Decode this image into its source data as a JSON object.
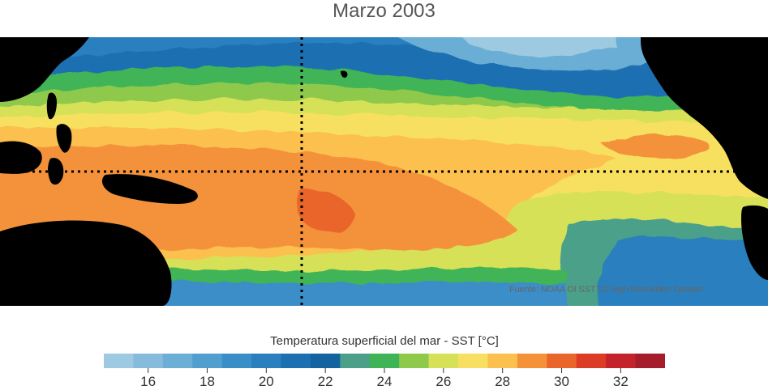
{
  "title": "Marzo 2003",
  "source_text": "Fuente: NOAA OI SST V2 High Resolution Dataset",
  "colorbar": {
    "label": "Temperatura superficial del mar - SST  [°C]",
    "min": 15,
    "max": 33,
    "bins": [
      {
        "from": 15,
        "to": 16,
        "color": "#9ecae1"
      },
      {
        "from": 16,
        "to": 17,
        "color": "#86bbdc"
      },
      {
        "from": 17,
        "to": 18,
        "color": "#6baed6"
      },
      {
        "from": 18,
        "to": 19,
        "color": "#519fcf"
      },
      {
        "from": 19,
        "to": 20,
        "color": "#3a8ec8"
      },
      {
        "from": 20,
        "to": 21,
        "color": "#2a7fbe"
      },
      {
        "from": 21,
        "to": 22,
        "color": "#1c70b2"
      },
      {
        "from": 22,
        "to": 23,
        "color": "#12639f"
      },
      {
        "from": 23,
        "to": 24,
        "color": "#4ca08a"
      },
      {
        "from": 24,
        "to": 25,
        "color": "#3fb456"
      },
      {
        "from": 25,
        "to": 26,
        "color": "#8fc94c"
      },
      {
        "from": 26,
        "to": 27,
        "color": "#d7e158"
      },
      {
        "from": 27,
        "to": 28,
        "color": "#f7e061"
      },
      {
        "from": 28,
        "to": 29,
        "color": "#fbc04d"
      },
      {
        "from": 29,
        "to": 30,
        "color": "#f4923a"
      },
      {
        "from": 30,
        "to": 31,
        "color": "#ea6529"
      },
      {
        "from": 31,
        "to": 32,
        "color": "#dc3b25"
      },
      {
        "from": 32,
        "to": 33,
        "color": "#c4232b"
      },
      {
        "from": 33,
        "to": 34,
        "color": "#a51c2a"
      }
    ],
    "tick_labels": [
      "16",
      "18",
      "20",
      "22",
      "24",
      "26",
      "28",
      "30",
      "32"
    ],
    "tick_values": [
      16,
      18,
      20,
      22,
      24,
      26,
      28,
      30,
      32
    ]
  }
}
